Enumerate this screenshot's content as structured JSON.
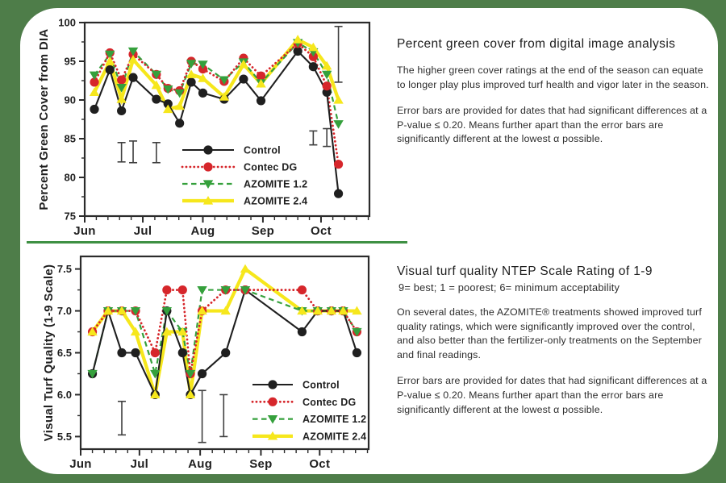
{
  "page": {
    "frame_color": "#4e7d49",
    "card_color": "#ffffff",
    "divider_color": "#3e9043"
  },
  "panels": {
    "top": {
      "heading": "Percent green cover from digital image analysis",
      "p1": "The higher green cover ratings at the end of the season can equate to longer play plus improved turf health and vigor later in the season.",
      "p2": "Error bars are provided for dates that had significant differences at a P-value ≤ 0.20. Means further apart than the error bars are significantly different at the lowest α possible."
    },
    "bottom": {
      "heading": "Visual turf quality NTEP Scale Rating of 1-9",
      "subheading": "9= best; 1 = poorest; 6= minimum acceptability",
      "p1": "On several dates, the AZOMITE® treatments showed improved turf quality ratings, which were significantly improved over the control, and also better than the fertilizer-only treatments on the September and final readings.",
      "p2": "Error bars are provided for dates that had significant differences at a P-value ≤ 0.20. Means further apart than the error bars are significantly different at the lowest α possible."
    }
  },
  "chart_data": [
    {
      "type": "line",
      "ylabel": "Percent Green Cover from DIA",
      "ylim": [
        75,
        100
      ],
      "yticks": [
        75,
        80,
        85,
        90,
        95,
        100
      ],
      "ytick_labels": [
        "75",
        "80",
        "85",
        "90",
        "95",
        "100"
      ],
      "y_minor_step": 2.5,
      "x_months": [
        "Jun",
        "Jul",
        "Aug",
        "Sep",
        "Oct"
      ],
      "month_starts": [
        0,
        30,
        61,
        92,
        122
      ],
      "x_max": 147,
      "grid": false,
      "legend_position": "inside-bottom-center",
      "x_days": [
        5,
        13,
        19,
        25,
        37,
        43,
        49,
        55,
        61,
        72,
        82,
        91,
        110,
        118,
        125,
        131
      ],
      "series": [
        {
          "name": "Control",
          "color": "#1f1f1f",
          "marker": "circle",
          "line": "solid",
          "values": [
            88.8,
            93.9,
            88.6,
            92.9,
            90.1,
            89.5,
            87.0,
            92.3,
            90.9,
            90.1,
            92.7,
            89.9,
            96.3,
            94.3,
            91.0,
            77.9
          ]
        },
        {
          "name": "Contec DG",
          "color": "#d6262b",
          "marker": "circle",
          "line": "dotted",
          "values": [
            92.3,
            96.1,
            92.6,
            95.9,
            93.3,
            91.5,
            91.2,
            95.0,
            94.0,
            92.4,
            95.4,
            93.1,
            97.3,
            95.6,
            91.8,
            81.7
          ]
        },
        {
          "name": "AZOMITE 1.2",
          "color": "#35a03c",
          "marker": "triangle-down",
          "line": "dashed",
          "values": [
            93.2,
            95.9,
            91.6,
            96.3,
            93.3,
            91.4,
            90.9,
            94.7,
            94.6,
            92.6,
            94.9,
            92.2,
            97.4,
            96.2,
            93.3,
            86.9
          ]
        },
        {
          "name": "AZOMITE 2.4",
          "color": "#f6e71c",
          "marker": "triangle-up",
          "line": "solid-thick",
          "values": [
            91.0,
            95.0,
            90.1,
            95.2,
            91.9,
            88.8,
            89.2,
            93.3,
            92.8,
            90.4,
            94.6,
            92.1,
            97.8,
            96.8,
            94.4,
            90.0
          ]
        }
      ],
      "error_bars": [
        {
          "x": 19,
          "low": 82.0,
          "high": 84.5
        },
        {
          "x": 25,
          "low": 81.9,
          "high": 84.7
        },
        {
          "x": 37,
          "low": 81.9,
          "high": 84.5
        },
        {
          "x": 118,
          "low": 84.2,
          "high": 86.0
        },
        {
          "x": 125,
          "low": 84.0,
          "high": 86.3
        },
        {
          "x": 131,
          "low": 92.3,
          "high": 99.5
        }
      ]
    },
    {
      "type": "line",
      "ylabel": "Visual Turf Quality (1-9 Scale)",
      "ylim": [
        5.35,
        7.65
      ],
      "yticks": [
        5.5,
        6.0,
        6.5,
        7.0,
        7.5
      ],
      "ytick_labels": [
        "5.5",
        "6.0",
        "6.5",
        "7.0",
        "7.5"
      ],
      "y_minor_step": 0.25,
      "x_months": [
        "Jun",
        "Jul",
        "Aug",
        "Sep",
        "Oct"
      ],
      "month_starts": [
        0,
        30,
        61,
        92,
        122
      ],
      "x_max": 147,
      "grid": false,
      "legend_position": "inside-bottom-right",
      "x_days": [
        6,
        14,
        21,
        28,
        38,
        44,
        52,
        56,
        62,
        74,
        84,
        113,
        121,
        128,
        134,
        141
      ],
      "series": [
        {
          "name": "Control",
          "color": "#1f1f1f",
          "marker": "circle",
          "line": "solid",
          "values": [
            6.25,
            7.0,
            6.5,
            6.5,
            6.0,
            7.0,
            6.5,
            6.0,
            6.25,
            6.5,
            7.25,
            6.75,
            7.0,
            7.0,
            7.0,
            6.5
          ]
        },
        {
          "name": "Contec DG",
          "color": "#d6262b",
          "marker": "circle",
          "line": "dotted",
          "values": [
            6.75,
            7.0,
            7.0,
            7.0,
            6.5,
            7.25,
            7.25,
            6.25,
            7.0,
            7.25,
            7.25,
            7.25,
            7.0,
            7.0,
            7.0,
            6.75
          ]
        },
        {
          "name": "AZOMITE 1.2",
          "color": "#35a03c",
          "marker": "triangle-down",
          "line": "dashed",
          "values": [
            6.25,
            7.0,
            7.0,
            7.0,
            6.25,
            7.0,
            6.75,
            6.25,
            7.25,
            7.25,
            7.25,
            7.0,
            7.0,
            7.0,
            7.0,
            6.75
          ]
        },
        {
          "name": "AZOMITE 2.4",
          "color": "#f6e71c",
          "marker": "triangle-up",
          "line": "solid-thick",
          "values": [
            6.75,
            7.0,
            7.0,
            6.75,
            6.0,
            6.75,
            6.75,
            6.0,
            7.0,
            7.0,
            7.5,
            7.0,
            7.0,
            7.0,
            7.0,
            7.0
          ]
        }
      ],
      "error_bars": [
        {
          "x": 21,
          "low": 5.52,
          "high": 5.92
        },
        {
          "x": 62,
          "low": 5.43,
          "high": 6.05
        },
        {
          "x": 73,
          "low": 5.5,
          "high": 6.0
        }
      ]
    }
  ]
}
